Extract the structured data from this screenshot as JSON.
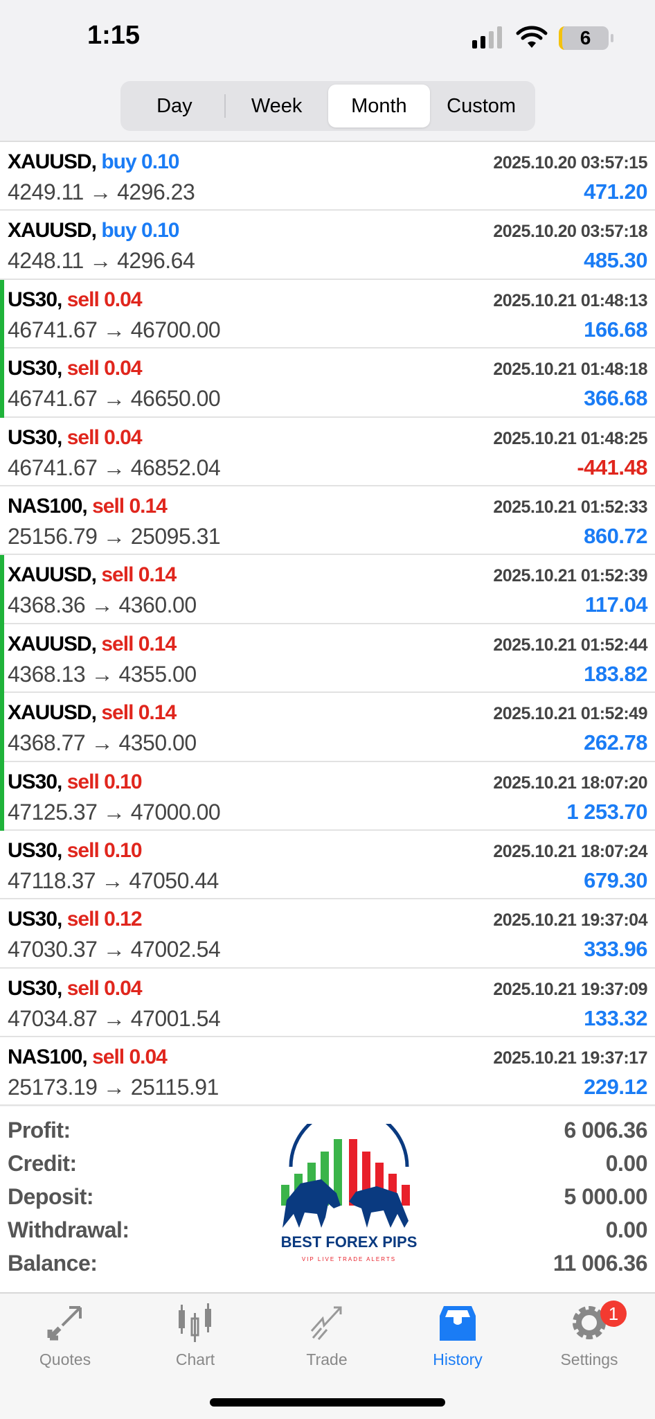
{
  "status_bar": {
    "time": "1:15",
    "battery": "6"
  },
  "period_tabs": [
    {
      "label": "Day"
    },
    {
      "label": "Week"
    },
    {
      "label": "Month",
      "active": true
    },
    {
      "label": "Custom"
    }
  ],
  "colors": {
    "buy": "#1a7cf5",
    "sell": "#e0261d",
    "profit_positive": "#1a7cf5",
    "profit_negative": "#e0261d",
    "marker": "#1fb33a"
  },
  "trades": [
    {
      "symbol": "XAUUSD,",
      "side": "buy",
      "volume": "0.10",
      "time": "2025.10.20 03:57:15",
      "prices": "4249.11 → 4296.23",
      "profit": "471.20",
      "marker": false
    },
    {
      "symbol": "XAUUSD,",
      "side": "buy",
      "volume": "0.10",
      "time": "2025.10.20 03:57:18",
      "prices": "4248.11 → 4296.64",
      "profit": "485.30",
      "marker": false
    },
    {
      "symbol": "US30,",
      "side": "sell",
      "volume": "0.04",
      "time": "2025.10.21 01:48:13",
      "prices": "46741.67 → 46700.00",
      "profit": "166.68",
      "marker": true
    },
    {
      "symbol": "US30,",
      "side": "sell",
      "volume": "0.04",
      "time": "2025.10.21 01:48:18",
      "prices": "46741.67 → 46650.00",
      "profit": "366.68",
      "marker": true
    },
    {
      "symbol": "US30,",
      "side": "sell",
      "volume": "0.04",
      "time": "2025.10.21 01:48:25",
      "prices": "46741.67 → 46852.04",
      "profit": "-441.48",
      "marker": false
    },
    {
      "symbol": "NAS100,",
      "side": "sell",
      "volume": "0.14",
      "time": "2025.10.21 01:52:33",
      "prices": "25156.79 → 25095.31",
      "profit": "860.72",
      "marker": false
    },
    {
      "symbol": "XAUUSD,",
      "side": "sell",
      "volume": "0.14",
      "time": "2025.10.21 01:52:39",
      "prices": "4368.36 → 4360.00",
      "profit": "117.04",
      "marker": true
    },
    {
      "symbol": "XAUUSD,",
      "side": "sell",
      "volume": "0.14",
      "time": "2025.10.21 01:52:44",
      "prices": "4368.13 → 4355.00",
      "profit": "183.82",
      "marker": true
    },
    {
      "symbol": "XAUUSD,",
      "side": "sell",
      "volume": "0.14",
      "time": "2025.10.21 01:52:49",
      "prices": "4368.77 → 4350.00",
      "profit": "262.78",
      "marker": true
    },
    {
      "symbol": "US30,",
      "side": "sell",
      "volume": "0.10",
      "time": "2025.10.21 18:07:20",
      "prices": "47125.37 → 47000.00",
      "profit": "1 253.70",
      "marker": true
    },
    {
      "symbol": "US30,",
      "side": "sell",
      "volume": "0.10",
      "time": "2025.10.21 18:07:24",
      "prices": "47118.37 → 47050.44",
      "profit": "679.30",
      "marker": false
    },
    {
      "symbol": "US30,",
      "side": "sell",
      "volume": "0.12",
      "time": "2025.10.21 19:37:04",
      "prices": "47030.37 → 47002.54",
      "profit": "333.96",
      "marker": false
    },
    {
      "symbol": "US30,",
      "side": "sell",
      "volume": "0.04",
      "time": "2025.10.21 19:37:09",
      "prices": "47034.87 → 47001.54",
      "profit": "133.32",
      "marker": false
    },
    {
      "symbol": "NAS100,",
      "side": "sell",
      "volume": "0.04",
      "time": "2025.10.21 19:37:17",
      "prices": "25173.19 → 25115.91",
      "profit": "229.12",
      "marker": false
    }
  ],
  "summary": [
    {
      "label": "Profit:",
      "value": "6 006.36"
    },
    {
      "label": "Credit:",
      "value": "0.00"
    },
    {
      "label": "Deposit:",
      "value": "5 000.00"
    },
    {
      "label": "Withdrawal:",
      "value": "0.00"
    },
    {
      "label": "Balance:",
      "value": "11 006.36"
    }
  ],
  "watermark": {
    "title": "BEST FOREX PIPS",
    "subtitle": "VIP LIVE TRADE ALERTS"
  },
  "tabbar": [
    {
      "label": "Quotes",
      "icon": "quotes-arrows-icon"
    },
    {
      "label": "Chart",
      "icon": "candlestick-icon"
    },
    {
      "label": "Trade",
      "icon": "trade-trend-icon"
    },
    {
      "label": "History",
      "icon": "inbox-icon",
      "active": true
    },
    {
      "label": "Settings",
      "icon": "gear-icon",
      "badge": "1"
    }
  ]
}
